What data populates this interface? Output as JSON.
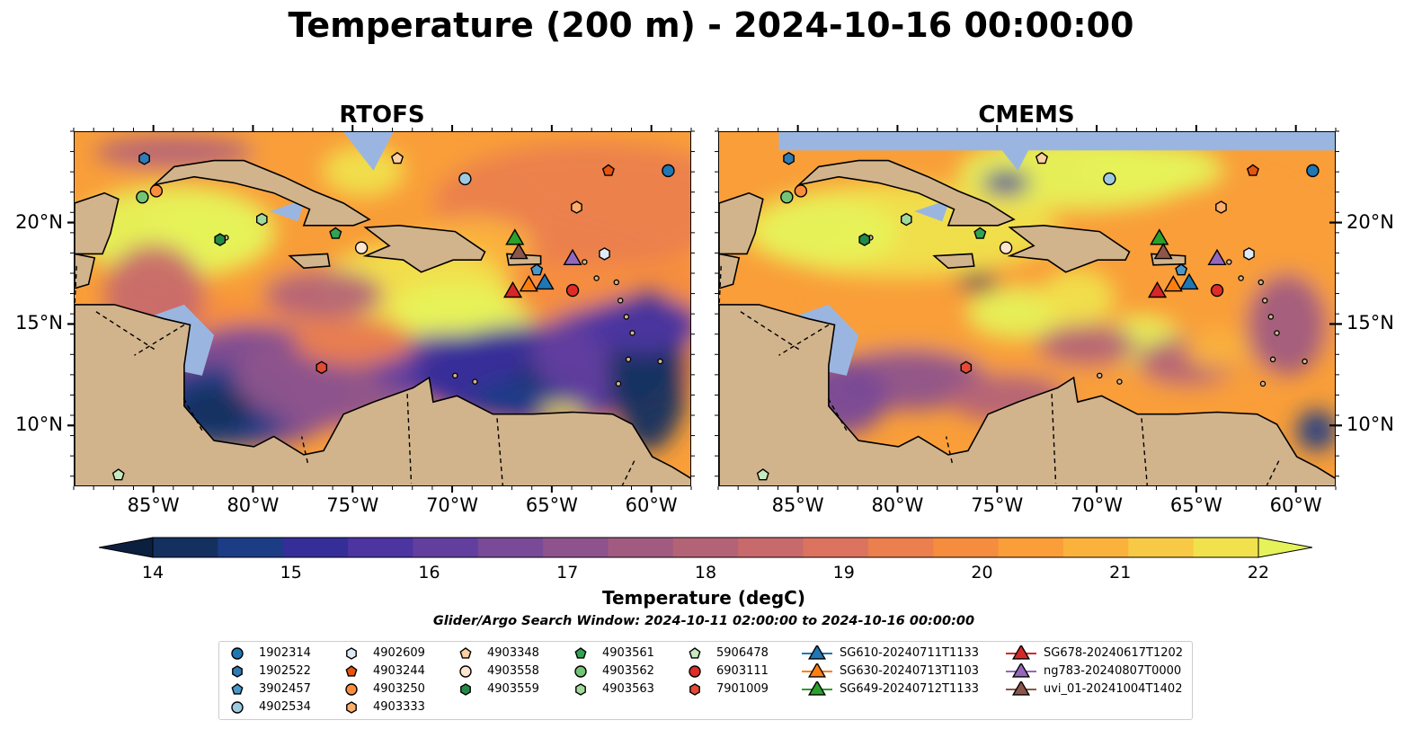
{
  "title": "Temperature (200 m) - 2024-10-16 00:00:00",
  "panels": [
    {
      "title": "RTOFS"
    },
    {
      "title": "CMEMS"
    }
  ],
  "map": {
    "lon_range": [
      -89,
      -58
    ],
    "lat_range": [
      7,
      24.5
    ],
    "lon_ticks": [
      "85°W",
      "80°W",
      "75°W",
      "70°W",
      "65°W",
      "60°W"
    ],
    "lon_tick_values": [
      -85,
      -80,
      -75,
      -70,
      -65,
      -60
    ],
    "lat_ticks": [
      "20°N",
      "15°N",
      "10°N"
    ],
    "lat_tick_values": [
      20,
      15,
      10
    ],
    "land_color": "#d2b48c",
    "shallow_color": "#9ab6e0",
    "deep_color": "#0a2540"
  },
  "colorbar": {
    "label": "Temperature (degC)",
    "ticks": [
      "14",
      "15",
      "16",
      "17",
      "18",
      "19",
      "20",
      "21",
      "22"
    ],
    "range": [
      14,
      22
    ],
    "colors": [
      "#0b1f3f",
      "#13305f",
      "#1d3c86",
      "#352e99",
      "#4c35a0",
      "#623f9f",
      "#794a97",
      "#8e538c",
      "#a25b80",
      "#b46377",
      "#c86a6c",
      "#db735f",
      "#eb7f4e",
      "#f58c3e",
      "#f99e39",
      "#fbb23c",
      "#f8c944",
      "#f1e14d",
      "#e6f25a"
    ]
  },
  "search_window": "Glider/Argo Search Window: 2024-10-11 02:00:00 to 2024-10-16 00:00:00",
  "legend": {
    "items": [
      {
        "label": "1902314",
        "marker": "circle",
        "color": "#1f77b4"
      },
      {
        "label": "1902522",
        "marker": "hexagon",
        "color": "#2f7bb6"
      },
      {
        "label": "3902457",
        "marker": "pentagon",
        "color": "#4a98c9"
      },
      {
        "label": "4902534",
        "marker": "circle",
        "color": "#9ecae1"
      },
      {
        "label": "4902609",
        "marker": "hexagon",
        "color": "#deebf7"
      },
      {
        "label": "4903244",
        "marker": "pentagon",
        "color": "#e6550d"
      },
      {
        "label": "4903250",
        "marker": "circle",
        "color": "#fd8d3c"
      },
      {
        "label": "4903333",
        "marker": "hexagon",
        "color": "#fdae6b"
      },
      {
        "label": "4903348",
        "marker": "pentagon",
        "color": "#fdd0a2"
      },
      {
        "label": "4903558",
        "marker": "circle",
        "color": "#fee6ce"
      },
      {
        "label": "4903559",
        "marker": "hexagon",
        "color": "#238b45"
      },
      {
        "label": "4903561",
        "marker": "pentagon",
        "color": "#31a354"
      },
      {
        "label": "4903562",
        "marker": "circle",
        "color": "#74c476"
      },
      {
        "label": "4903563",
        "marker": "hexagon",
        "color": "#a1d99b"
      },
      {
        "label": "5906478",
        "marker": "pentagon",
        "color": "#c7e9c0"
      },
      {
        "label": "6903111",
        "marker": "circle",
        "color": "#de2d26"
      },
      {
        "label": "7901009",
        "marker": "hexagon",
        "color": "#e34a33"
      },
      {
        "label": "SG610-20240711T1133",
        "marker": "triangle",
        "color": "#1f77b4"
      },
      {
        "label": "SG630-20240713T1103",
        "marker": "triangle",
        "color": "#ff7f0e"
      },
      {
        "label": "SG649-20240712T1133",
        "marker": "triangle",
        "color": "#2ca02c"
      },
      {
        "label": "SG678-20240617T1202",
        "marker": "triangle",
        "color": "#d62728"
      },
      {
        "label": "ng783-20240807T0000",
        "marker": "triangle",
        "color": "#9467bd"
      },
      {
        "label": "uvi_01-20241004T1402",
        "marker": "triangle",
        "color": "#8c564b"
      }
    ]
  },
  "platforms": [
    {
      "id": "1902314",
      "lon": -59.2,
      "lat": 22.6
    },
    {
      "id": "1902522",
      "lon": -85.5,
      "lat": 23.2
    },
    {
      "id": "3902457",
      "lon": -65.8,
      "lat": 17.7
    },
    {
      "id": "4902534",
      "lon": -69.4,
      "lat": 22.2
    },
    {
      "id": "4902609",
      "lon": -62.4,
      "lat": 18.5
    },
    {
      "id": "4903244",
      "lon": -62.2,
      "lat": 22.6
    },
    {
      "id": "4903250",
      "lon": -84.9,
      "lat": 21.6
    },
    {
      "id": "4903333",
      "lon": -63.8,
      "lat": 20.8
    },
    {
      "id": "4903348",
      "lon": -72.8,
      "lat": 23.2
    },
    {
      "id": "4903558",
      "lon": -74.6,
      "lat": 18.8
    },
    {
      "id": "4903559",
      "lon": -81.7,
      "lat": 19.2
    },
    {
      "id": "4903561",
      "lon": -75.9,
      "lat": 19.5
    },
    {
      "id": "4903562",
      "lon": -85.6,
      "lat": 21.3
    },
    {
      "id": "4903563",
      "lon": -79.6,
      "lat": 20.2
    },
    {
      "id": "5906478",
      "lon": -86.8,
      "lat": 7.6
    },
    {
      "id": "6903111",
      "lon": -64.0,
      "lat": 16.7
    },
    {
      "id": "7901009",
      "lon": -76.6,
      "lat": 12.9
    },
    {
      "id": "SG610-20240711T1133",
      "lon": -65.4,
      "lat": 17.1
    },
    {
      "id": "SG630-20240713T1103",
      "lon": -66.2,
      "lat": 17.0
    },
    {
      "id": "SG649-20240712T1133",
      "lon": -66.9,
      "lat": 19.3
    },
    {
      "id": "SG678-20240617T1202",
      "lon": -67.0,
      "lat": 16.7
    },
    {
      "id": "ng783-20240807T0000",
      "lon": -64.0,
      "lat": 18.3
    },
    {
      "id": "uvi_01-20241004T1402",
      "lon": -66.7,
      "lat": 18.6
    }
  ]
}
